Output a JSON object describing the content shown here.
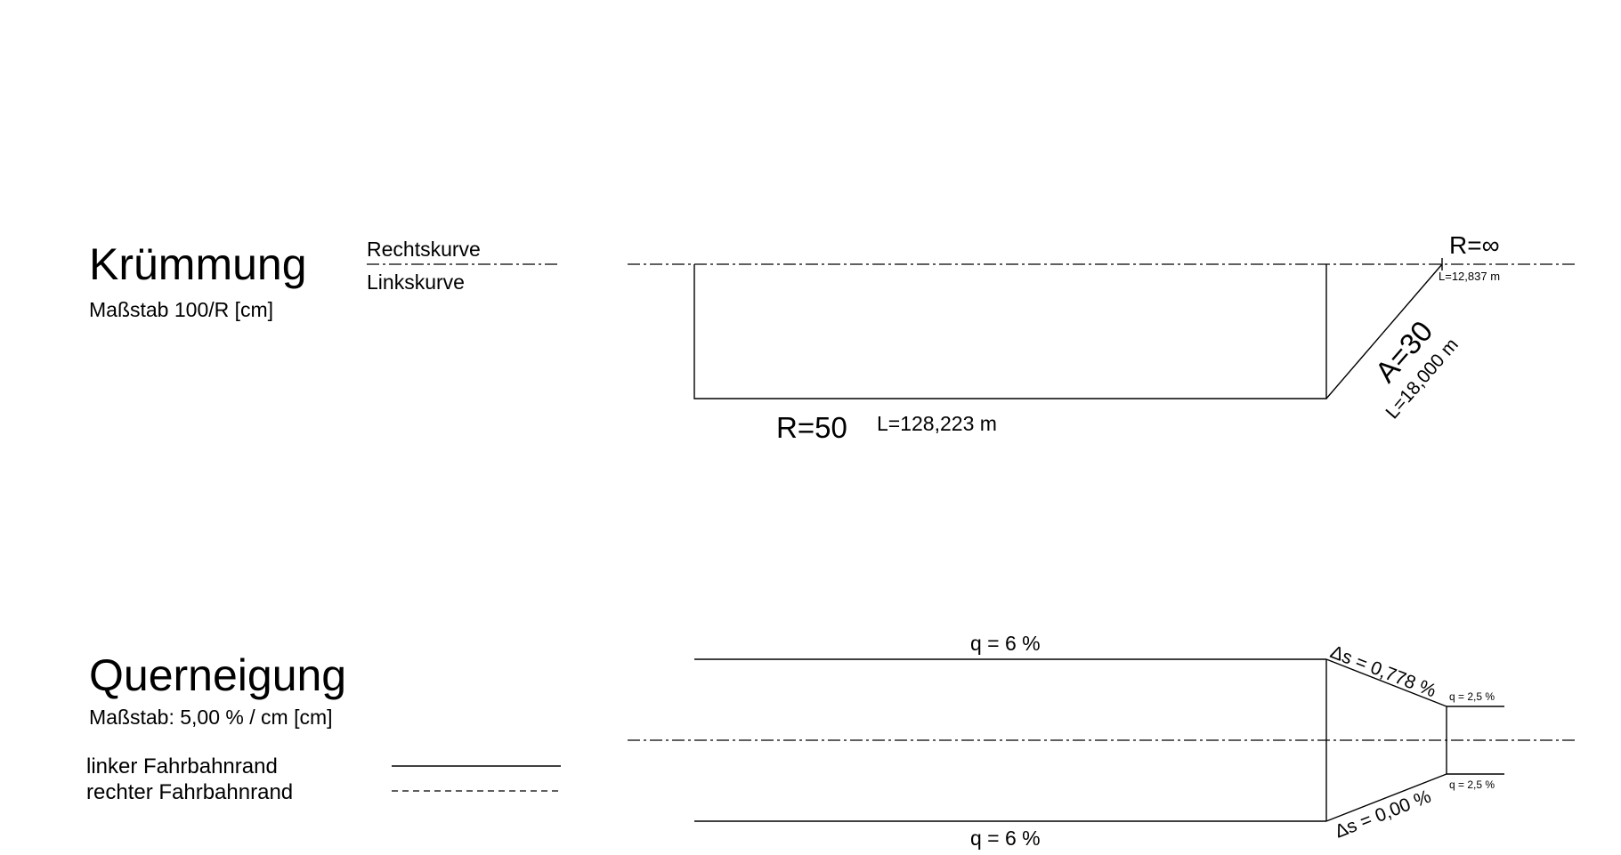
{
  "kruemmung": {
    "title": "Krümmung",
    "scale": "Maßstab 100/R [cm]",
    "legend_right": "Rechtskurve",
    "legend_left": "Linkskurve",
    "radius_label": "R=50",
    "radius_length": "L=128,223 m",
    "clothoid_param": "A=30",
    "clothoid_length": "L=18,000 m",
    "straight_radius": "R=∞",
    "straight_length": "L=12,837 m"
  },
  "querneigung": {
    "title": "Querneigung",
    "scale": "Maßstab: 5,00 % / cm [cm]",
    "legend_left_edge": "linker Fahrbahnrand",
    "legend_right_edge": "rechter Fahrbahnrand",
    "top_slope": "q = 6 %",
    "bottom_slope": "q = 6 %",
    "delta_top": "Δs = 0,778 %",
    "delta_bottom": "Δs = 0,00 %",
    "end_slope_top": "q = 2,5 %",
    "end_slope_bottom": "q = 2,5 %"
  }
}
